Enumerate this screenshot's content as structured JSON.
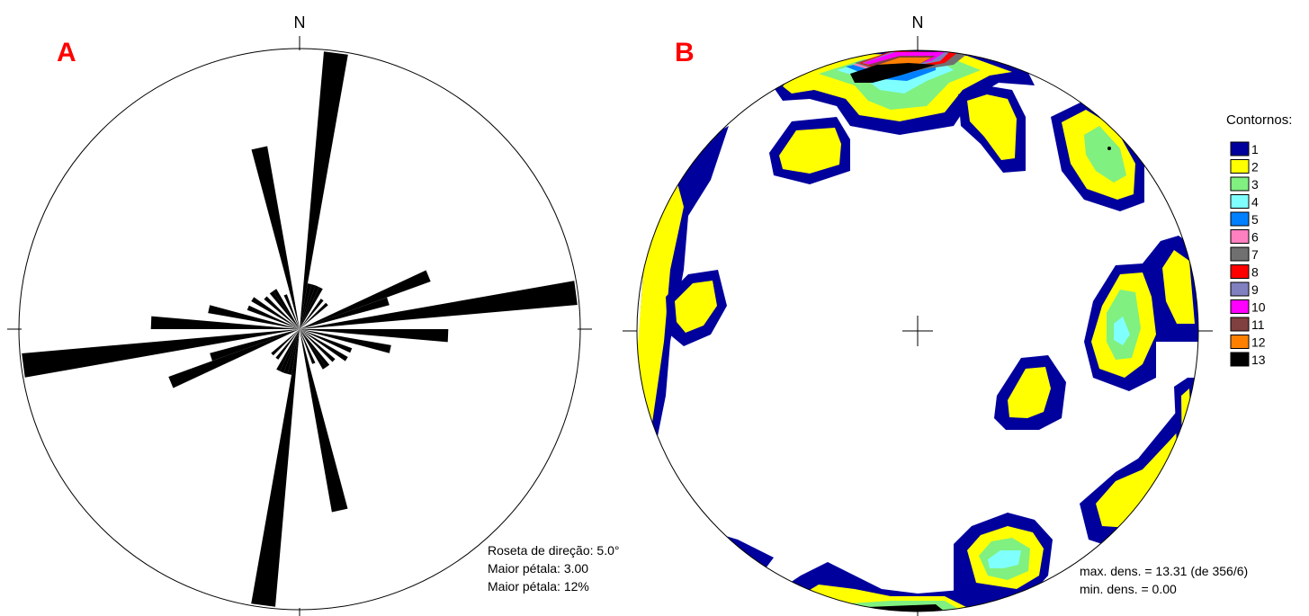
{
  "panel_a": {
    "letter": "A",
    "north": "N",
    "info": [
      "Roseta de direção: 5.0°",
      "Maior pétala: 3.00",
      "Maior pétala: 12%"
    ],
    "petals": [
      {
        "az": 7.5,
        "len": 3.0
      },
      {
        "az": 12.5,
        "len": 0.5
      },
      {
        "az": 17.5,
        "len": 0.5
      },
      {
        "az": 22.5,
        "len": 0.5
      },
      {
        "az": 27.5,
        "len": 0.5
      },
      {
        "az": 37.5,
        "len": 0.4
      },
      {
        "az": 47.5,
        "len": 0.4
      },
      {
        "az": 67.5,
        "len": 1.5
      },
      {
        "az": 72.5,
        "len": 1.0
      },
      {
        "az": 82.5,
        "len": 3.0
      },
      {
        "az": 92.5,
        "len": 1.6
      },
      {
        "az": 102.5,
        "len": 1.0
      },
      {
        "az": 112.5,
        "len": 0.6
      },
      {
        "az": 122.5,
        "len": 0.6
      },
      {
        "az": 132.5,
        "len": 0.5
      },
      {
        "az": 142.5,
        "len": 0.5
      },
      {
        "az": 147.5,
        "len": 0.5
      },
      {
        "az": 157.5,
        "len": 0.4
      },
      {
        "az": 167.5,
        "len": 2.0
      },
      {
        "az": 187.5,
        "len": 3.0
      },
      {
        "az": 192.5,
        "len": 0.5
      },
      {
        "az": 197.5,
        "len": 0.5
      },
      {
        "az": 202.5,
        "len": 0.5
      },
      {
        "az": 207.5,
        "len": 0.5
      },
      {
        "az": 217.5,
        "len": 0.4
      },
      {
        "az": 227.5,
        "len": 0.4
      },
      {
        "az": 247.5,
        "len": 1.5
      },
      {
        "az": 252.5,
        "len": 1.0
      },
      {
        "az": 262.5,
        "len": 3.0
      },
      {
        "az": 272.5,
        "len": 1.6
      },
      {
        "az": 282.5,
        "len": 1.0
      },
      {
        "az": 292.5,
        "len": 0.6
      },
      {
        "az": 302.5,
        "len": 0.6
      },
      {
        "az": 312.5,
        "len": 0.5
      },
      {
        "az": 322.5,
        "len": 0.5
      },
      {
        "az": 327.5,
        "len": 0.5
      },
      {
        "az": 337.5,
        "len": 0.4
      },
      {
        "az": 347.5,
        "len": 2.0
      }
    ]
  },
  "panel_b": {
    "letter": "B",
    "north": "N",
    "legend_title": "Contornos:",
    "legend": [
      {
        "label": "1",
        "color": "#00009c"
      },
      {
        "label": "2",
        "color": "#ffff00"
      },
      {
        "label": "3",
        "color": "#80f080"
      },
      {
        "label": "4",
        "color": "#80ffff"
      },
      {
        "label": "5",
        "color": "#0080ff"
      },
      {
        "label": "6",
        "color": "#ff80c0"
      },
      {
        "label": "7",
        "color": "#707070"
      },
      {
        "label": "8",
        "color": "#ff0000"
      },
      {
        "label": "9",
        "color": "#8080c0"
      },
      {
        "label": "10",
        "color": "#ff00ff"
      },
      {
        "label": "11",
        "color": "#804040"
      },
      {
        "label": "12",
        "color": "#ff8000"
      },
      {
        "label": "13",
        "color": "#000000"
      }
    ],
    "info": [
      "max. dens. = 13.31 (de 356/6)",
      "min. dens. = 0.00"
    ]
  }
}
